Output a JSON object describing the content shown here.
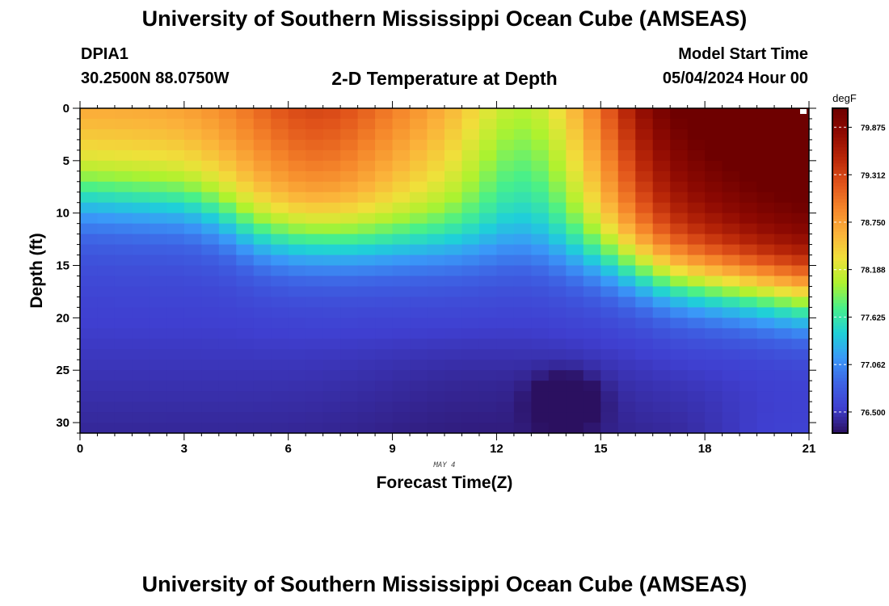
{
  "header": {
    "title": "University of Southern Mississippi Ocean Cube (AMSEAS)",
    "station_id": "DPIA1",
    "coordinates": "30.2500N  88.0750W",
    "subtitle": "2-D Temperature at Depth",
    "model_start_label": "Model Start Time",
    "model_start_value": "05/04/2024 Hour 00"
  },
  "footer": {
    "title": "University of Southern Mississippi Ocean Cube (AMSEAS)"
  },
  "chart_data": {
    "type": "heatmap",
    "title": "2-D Temperature at Depth",
    "xlabel": "Forecast Time(Z)",
    "ylabel": "Depth (ft)",
    "date_label": "MAY 4",
    "xlim": [
      0,
      21
    ],
    "ylim": [
      0,
      31
    ],
    "x_ticks": [
      0,
      3,
      6,
      9,
      12,
      15,
      18,
      21
    ],
    "x_tick_labels": [
      "0",
      "3",
      "6",
      "9",
      "12",
      "15",
      "18",
      "21"
    ],
    "y_ticks": [
      0,
      5,
      10,
      15,
      20,
      25,
      30
    ],
    "y_tick_labels": [
      "0",
      "5",
      "10",
      "15",
      "20",
      "25",
      "30"
    ],
    "colorbar": {
      "unit": "degF",
      "min": 76.25,
      "max": 80.1,
      "tick_values": [
        79.875,
        79.312,
        78.75,
        78.188,
        77.625,
        77.062,
        76.5
      ],
      "tick_labels": [
        "79.875",
        "79.312",
        "78.750",
        "78.188",
        "77.625",
        "77.062",
        "76.500"
      ],
      "colors": [
        "#2b1060",
        "#3f3fd0",
        "#3e63e4",
        "#3a98f8",
        "#1fd0d8",
        "#48f08a",
        "#aef22e",
        "#f0e03a",
        "#fbb23a",
        "#f5852a",
        "#e0521a",
        "#b82608",
        "#8f0a02",
        "#6e0000"
      ]
    },
    "grid": false,
    "field_description": "Warm layer (79-80 degF) near surface, thermocline deepening from ~9 ft to ~13 ft, cold water (76.3-76.7 degF) below; cold anomaly near hour 14 at ~26-30 ft."
  }
}
